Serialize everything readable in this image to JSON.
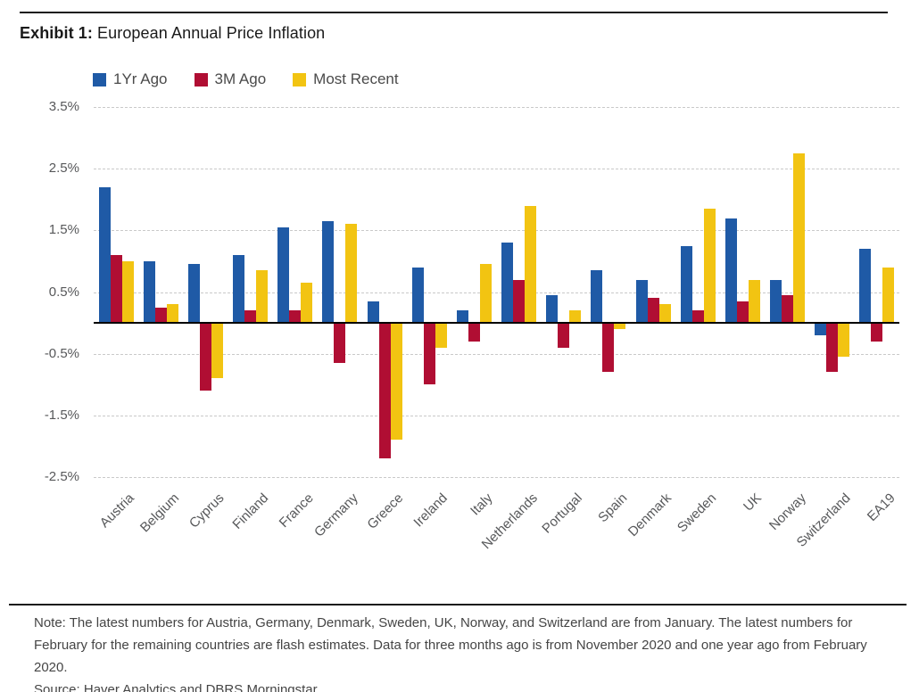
{
  "header": {
    "exhibit_label": "Exhibit 1:",
    "title": "European Annual Price Inflation"
  },
  "chart_data": {
    "type": "bar",
    "title": "European Annual Price Inflation",
    "unit": "percent",
    "ylim": [
      -2.5,
      3.5
    ],
    "yticks": [
      "3.5%",
      "2.5%",
      "1.5%",
      "0.5%",
      "-0.5%",
      "-1.5%",
      "-2.5%"
    ],
    "grid": "horizontal-dashed",
    "legend_position": "top-left",
    "categories": [
      "Austria",
      "Belgium",
      "Cyprus",
      "Finland",
      "France",
      "Germany",
      "Greece",
      "Ireland",
      "Italy",
      "Netherlands",
      "Portugal",
      "Spain",
      "Denmark",
      "Sweden",
      "UK",
      "Norway",
      "Switzerland",
      "EA19"
    ],
    "series": [
      {
        "name": "1Yr Ago",
        "color": "#1F5AA6",
        "values": [
          2.2,
          1.0,
          0.95,
          1.1,
          1.55,
          1.65,
          0.35,
          0.9,
          0.2,
          1.3,
          0.45,
          0.85,
          0.7,
          1.25,
          1.7,
          0.7,
          -0.2,
          1.2
        ]
      },
      {
        "name": "3M Ago",
        "color": "#B00E33",
        "values": [
          1.1,
          0.25,
          -1.1,
          0.2,
          0.2,
          -0.65,
          -2.2,
          -1.0,
          -0.3,
          0.7,
          -0.4,
          -0.8,
          0.4,
          0.2,
          0.35,
          0.45,
          -0.8,
          -0.3
        ]
      },
      {
        "name": "Most Recent",
        "color": "#F2C412",
        "values": [
          1.0,
          0.3,
          -0.9,
          0.85,
          0.65,
          1.6,
          -1.9,
          -0.4,
          0.95,
          1.9,
          0.2,
          -0.1,
          0.3,
          1.85,
          0.7,
          2.75,
          -0.55,
          0.9
        ]
      }
    ]
  },
  "footer": {
    "note_lines": [
      "Note: The latest numbers for Austria, Germany, Denmark, Sweden, UK, Norway, and Switzerland are from January. The latest numbers for",
      "February for the remaining countries are flash estimates. Data for three months ago is from November 2020 and one year ago from February 2020."
    ],
    "source": "Source: Haver Analytics and DBRS Morningstar."
  }
}
